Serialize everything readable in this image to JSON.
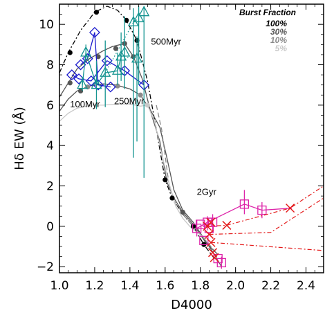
{
  "chart_data": {
    "type": "scatter",
    "xlabel": "D4000",
    "ylabel": "Hδ EW (Å)",
    "xlim": [
      1.0,
      2.5
    ],
    "ylim": [
      -2.3,
      11.0
    ],
    "x_ticks": [
      "1.0",
      "1.2",
      "1.4",
      "1.6",
      "1.8",
      "2.0",
      "2.2",
      "2.4"
    ],
    "y_ticks": [
      "−2",
      "0",
      "2",
      "4",
      "6",
      "8",
      "10"
    ],
    "grid": false,
    "legend": {
      "title": "Burst Fraction",
      "position": "top-right",
      "entries": [
        {
          "label": "100%",
          "color": "#000000"
        },
        {
          "label": "30%",
          "color": "#555555"
        },
        {
          "label": "10%",
          "color": "#8a8a8a"
        },
        {
          "label": "5%",
          "color": "#c8c8c8"
        }
      ]
    },
    "annotations": [
      {
        "text": "500Myr",
        "x": 1.52,
        "y": 9.0
      },
      {
        "text": "250Myr",
        "x": 1.31,
        "y": 6.05
      },
      {
        "text": "100Myr",
        "x": 1.06,
        "y": 5.9
      },
      {
        "text": "2Gyr",
        "x": 1.78,
        "y": 1.55
      }
    ],
    "tracks": [
      {
        "color": "#000000",
        "dash": "7,3,2,3",
        "points": [
          [
            1.0,
            7.6
          ],
          [
            1.05,
            8.6
          ],
          [
            1.12,
            9.7
          ],
          [
            1.2,
            10.6
          ],
          [
            1.27,
            10.9
          ],
          [
            1.33,
            10.7
          ],
          [
            1.38,
            10.2
          ],
          [
            1.44,
            9.2
          ],
          [
            1.5,
            7.2
          ],
          [
            1.55,
            4.8
          ],
          [
            1.6,
            2.3
          ],
          [
            1.64,
            1.4
          ],
          [
            1.7,
            0.6
          ],
          [
            1.76,
            0.0
          ],
          [
            1.82,
            -0.9
          ],
          [
            1.88,
            -1.6
          ]
        ]
      },
      {
        "color": "#555555",
        "dash": "",
        "points": [
          [
            1.0,
            6.4
          ],
          [
            1.05,
            7.1
          ],
          [
            1.1,
            7.8
          ],
          [
            1.17,
            8.3
          ],
          [
            1.25,
            8.7
          ],
          [
            1.3,
            8.9
          ],
          [
            1.37,
            9.05
          ],
          [
            1.42,
            8.4
          ],
          [
            1.47,
            7.3
          ],
          [
            1.52,
            5.6
          ],
          [
            1.57,
            4.2
          ],
          [
            1.61,
            2.2
          ],
          [
            1.65,
            1.4
          ],
          [
            1.7,
            0.7
          ],
          [
            1.76,
            0.1
          ],
          [
            1.83,
            -0.8
          ],
          [
            1.9,
            -1.4
          ]
        ]
      },
      {
        "color": "#555555",
        "dash": "",
        "points": [
          [
            1.0,
            5.7
          ],
          [
            1.05,
            6.3
          ],
          [
            1.1,
            6.7
          ],
          [
            1.17,
            6.95
          ],
          [
            1.25,
            7.05
          ],
          [
            1.32,
            7.0
          ],
          [
            1.4,
            6.8
          ],
          [
            1.46,
            6.5
          ],
          [
            1.52,
            5.7
          ],
          [
            1.57,
            4.9
          ],
          [
            1.61,
            3.4
          ],
          [
            1.65,
            1.8
          ],
          [
            1.7,
            0.8
          ],
          [
            1.76,
            0.2
          ],
          [
            1.82,
            -0.6
          ],
          [
            1.88,
            -1.4
          ],
          [
            1.92,
            -2.0
          ]
        ]
      },
      {
        "color": "#8a8a8a",
        "dash": "7,4",
        "points": [
          [
            1.55,
            6.0
          ],
          [
            1.58,
            4.8
          ],
          [
            1.6,
            3.5
          ],
          [
            1.62,
            2.2
          ],
          [
            1.65,
            1.2
          ],
          [
            1.68,
            0.9
          ],
          [
            1.71,
            0.5
          ],
          [
            1.74,
            0.2
          ],
          [
            1.78,
            -0.2
          ],
          [
            1.83,
            -0.7
          ],
          [
            1.88,
            -1.2
          ]
        ]
      },
      {
        "color": "#c8c8c8",
        "dash": "",
        "points": [
          [
            1.0,
            5.2
          ],
          [
            1.05,
            5.6
          ],
          [
            1.1,
            5.85
          ],
          [
            1.18,
            6.0
          ],
          [
            1.25,
            6.0
          ],
          [
            1.32,
            6.05
          ],
          [
            1.4,
            6.05
          ],
          [
            1.46,
            5.95
          ],
          [
            1.5,
            6.0
          ],
          [
            1.54,
            5.2
          ],
          [
            1.58,
            3.6
          ],
          [
            1.62,
            2.2
          ],
          [
            1.66,
            1.0
          ],
          [
            1.7,
            0.4
          ],
          [
            1.74,
            0.0
          ],
          [
            1.78,
            -0.3
          ],
          [
            1.83,
            -0.6
          ]
        ]
      }
    ],
    "track_markers": [
      {
        "color": "#000000",
        "points": [
          [
            1.06,
            8.6
          ],
          [
            1.21,
            10.6
          ],
          [
            1.38,
            10.2
          ],
          [
            1.44,
            9.2
          ],
          [
            1.6,
            2.3
          ],
          [
            1.64,
            1.4
          ],
          [
            1.76,
            0.0
          ],
          [
            1.82,
            -0.9
          ]
        ]
      },
      {
        "color": "#555555",
        "points": [
          [
            1.06,
            7.1
          ],
          [
            1.12,
            6.7
          ],
          [
            1.22,
            8.4
          ],
          [
            1.32,
            8.8
          ],
          [
            1.37,
            9.05
          ],
          [
            1.42,
            8.4
          ],
          [
            1.7,
            0.7
          ]
        ]
      },
      {
        "color": "#8a8a8a",
        "points": [
          [
            1.16,
            6.9
          ],
          [
            1.33,
            6.95
          ],
          [
            1.46,
            6.5
          ]
        ]
      },
      {
        "color": "#c8c8c8",
        "points": [
          [
            1.5,
            6.0
          ]
        ]
      }
    ],
    "series": [
      {
        "name": "",
        "marker": "diamond",
        "color": "#1a1acd",
        "points": [
          [
            1.07,
            7.5
          ],
          [
            1.11,
            7.3
          ],
          [
            1.12,
            8.0
          ],
          [
            1.16,
            8.3
          ],
          [
            1.18,
            7.2
          ],
          [
            1.2,
            9.6
          ],
          [
            1.22,
            7.0
          ],
          [
            1.27,
            8.2
          ],
          [
            1.29,
            6.9
          ],
          [
            1.37,
            7.7
          ],
          [
            1.48,
            7.0
          ]
        ],
        "segments": [
          [
            [
              1.07,
              7.5
            ],
            [
              1.11,
              7.3
            ],
            [
              1.18,
              7.2
            ],
            [
              1.27,
              8.2
            ],
            [
              1.37,
              7.7
            ],
            [
              1.48,
              7.0
            ]
          ],
          [
            [
              1.12,
              8.0
            ],
            [
              1.16,
              8.3
            ],
            [
              1.2,
              9.6
            ],
            [
              1.22,
              7.0
            ],
            [
              1.29,
              6.9
            ]
          ]
        ]
      },
      {
        "name": "",
        "marker": "triangle",
        "color": "#149490",
        "points": [
          [
            1.13,
            7.0
          ],
          [
            1.15,
            8.6
          ],
          [
            1.21,
            7.0
          ],
          [
            1.26,
            7.6
          ],
          [
            1.33,
            7.7
          ],
          [
            1.35,
            8.4
          ],
          [
            1.37,
            8.6
          ],
          [
            1.42,
            10.1
          ],
          [
            1.44,
            8.3
          ],
          [
            1.45,
            10.3
          ],
          [
            1.48,
            10.6
          ]
        ],
        "error_bars": [
          [
            1.13,
            6.7,
            7.4
          ],
          [
            1.15,
            8.2,
            9.0
          ],
          [
            1.21,
            5.8,
            8.2
          ],
          [
            1.26,
            5.9,
            9.2
          ],
          [
            1.33,
            7.0,
            8.6
          ],
          [
            1.35,
            7.2,
            9.6
          ],
          [
            1.37,
            6.8,
            10.4
          ],
          [
            1.42,
            3.4,
            10.8
          ],
          [
            1.44,
            4.2,
            9.4
          ],
          [
            1.45,
            7.0,
            10.9
          ],
          [
            1.48,
            2.4,
            10.9
          ]
        ],
        "segments": [
          [
            [
              1.13,
              7.0
            ],
            [
              1.15,
              8.6
            ],
            [
              1.21,
              7.0
            ],
            [
              1.26,
              7.6
            ],
            [
              1.33,
              7.7
            ],
            [
              1.35,
              8.4
            ]
          ]
        ],
        "dotted_segments": [
          [
            [
              1.26,
              7.6
            ],
            [
              1.42,
              10.1
            ]
          ],
          [
            [
              1.42,
              10.1
            ],
            [
              1.45,
              10.3
            ]
          ],
          [
            [
              1.35,
              8.4
            ],
            [
              1.44,
              8.3
            ]
          ]
        ]
      },
      {
        "name": "",
        "marker": "square",
        "color": "#dd22a8",
        "points": [
          [
            1.78,
            -0.1
          ],
          [
            1.8,
            0.1
          ],
          [
            1.82,
            -0.7
          ],
          [
            1.84,
            0.2
          ],
          [
            1.85,
            -0.1
          ],
          [
            1.87,
            0.2
          ],
          [
            1.9,
            -1.6
          ],
          [
            1.92,
            -1.8
          ],
          [
            2.05,
            1.1
          ],
          [
            2.15,
            0.8
          ]
        ],
        "error_bars": [
          [
            1.78,
            -0.5,
            0.3
          ],
          [
            1.84,
            -0.2,
            0.5
          ],
          [
            1.87,
            -0.3,
            0.6
          ],
          [
            1.92,
            -2.1,
            -1.5
          ],
          [
            2.05,
            0.6,
            1.8
          ],
          [
            2.15,
            0.4,
            1.2
          ]
        ],
        "segments": [
          [
            [
              1.78,
              -0.1
            ],
            [
              1.84,
              0.2
            ],
            [
              2.05,
              1.1
            ],
            [
              2.15,
              0.8
            ],
            [
              2.32,
              0.9
            ]
          ]
        ]
      },
      {
        "name": "",
        "marker": "cross",
        "color": "#e41a1a",
        "points": [
          [
            1.84,
            0.0
          ],
          [
            1.85,
            -0.4
          ],
          [
            1.86,
            -0.8
          ],
          [
            1.87,
            -1.3
          ],
          [
            1.88,
            -1.55
          ],
          [
            1.86,
            0.2
          ],
          [
            1.95,
            0.05
          ],
          [
            2.31,
            0.9
          ]
        ],
        "dash_segments": [
          [
            [
              1.84,
              0.0
            ],
            [
              1.95,
              0.05
            ],
            [
              2.31,
              0.9
            ],
            [
              2.5,
              2.0
            ]
          ],
          [
            [
              1.86,
              -0.8
            ],
            [
              2.5,
              -1.2
            ]
          ],
          [
            [
              1.85,
              -0.4
            ],
            [
              2.2,
              -0.3
            ],
            [
              2.5,
              1.4
            ]
          ]
        ]
      }
    ]
  }
}
